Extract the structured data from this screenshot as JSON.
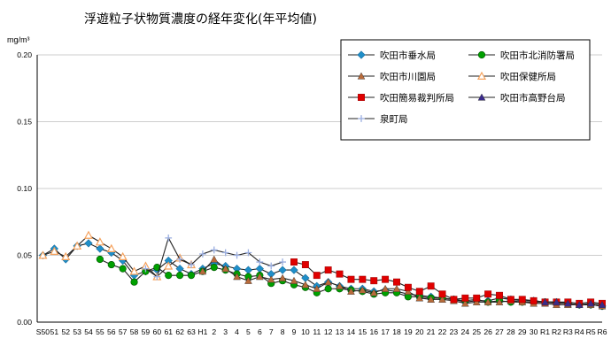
{
  "chart_data": {
    "type": "line",
    "title": "浮遊粒子状物質濃度の経年変化(年平均値)",
    "ylabel": "mg/m³",
    "ylim": [
      0,
      0.2
    ],
    "y_ticks": [
      "0.00",
      "0.05",
      "0.10",
      "0.15",
      "0.20"
    ],
    "categories": [
      "S50",
      "51",
      "52",
      "53",
      "54",
      "55",
      "56",
      "57",
      "58",
      "59",
      "60",
      "61",
      "62",
      "63",
      "H1",
      "2",
      "3",
      "4",
      "5",
      "6",
      "7",
      "8",
      "9",
      "10",
      "11",
      "12",
      "13",
      "14",
      "15",
      "16",
      "17",
      "18",
      "19",
      "20",
      "21",
      "22",
      "23",
      "24",
      "25",
      "26",
      "27",
      "28",
      "29",
      "30",
      "R1",
      "R2",
      "R3",
      "R4",
      "R5",
      "R6"
    ],
    "legend_position": "top-right",
    "grid": true,
    "series": [
      {
        "name": "吹田市垂水局",
        "color": "#1f8fc9",
        "marker": "diamond",
        "values": [
          0.05,
          0.055,
          0.047,
          0.057,
          0.059,
          0.055,
          0.052,
          0.046,
          0.035,
          0.038,
          0.039,
          0.046,
          0.04,
          0.036,
          0.04,
          0.044,
          0.042,
          0.04,
          0.039,
          0.04,
          0.036,
          0.039,
          0.039,
          0.033,
          0.027,
          0.03,
          0.027,
          0.025,
          0.025,
          0.023,
          0.024,
          0.023,
          0.021,
          0.02,
          0.019,
          0.018,
          0.017,
          0.015,
          0.016,
          0.016,
          0.018,
          0.017,
          0.016,
          0.016,
          0.015,
          0.015,
          0.014,
          0.013,
          0.013,
          0.012
        ]
      },
      {
        "name": "吹田市北消防署局",
        "color": "#00a000",
        "marker": "circle",
        "values": [
          null,
          null,
          null,
          null,
          null,
          0.047,
          0.043,
          0.04,
          0.03,
          0.038,
          0.041,
          0.035,
          0.035,
          0.035,
          0.038,
          0.041,
          0.039,
          0.036,
          0.034,
          0.035,
          0.029,
          0.031,
          0.028,
          0.026,
          0.022,
          0.025,
          0.025,
          0.024,
          0.023,
          0.021,
          0.022,
          0.022,
          0.019,
          0.019,
          0.018,
          0.018,
          0.017,
          0.016,
          0.017,
          0.015,
          0.016,
          0.015,
          0.015,
          0.015,
          0.015,
          0.014,
          0.014,
          0.013,
          0.013,
          0.012
        ]
      },
      {
        "name": "吹田市川園局",
        "color": "#b86a3a",
        "marker": "triangle",
        "values": [
          null,
          null,
          null,
          null,
          null,
          null,
          null,
          null,
          null,
          null,
          null,
          null,
          null,
          null,
          0.038,
          0.047,
          0.04,
          0.034,
          0.031,
          0.034,
          0.032,
          0.033,
          0.031,
          0.028,
          0.025,
          0.03,
          0.027,
          0.023,
          0.024,
          0.022,
          0.025,
          0.025,
          0.023,
          0.018,
          0.017,
          0.017,
          0.016,
          0.014,
          0.015,
          0.015,
          0.015,
          0.016,
          0.015,
          0.014,
          0.014,
          0.013,
          0.013,
          0.013,
          0.013,
          0.012
        ]
      },
      {
        "name": "吹田保健所局",
        "color": "#f5a25d",
        "marker": "triangle-open",
        "values": [
          0.05,
          0.053,
          0.049,
          0.057,
          0.065,
          0.06,
          0.055,
          0.049,
          0.038,
          0.042,
          0.034,
          0.042,
          0.048,
          0.043,
          null,
          null,
          null,
          null,
          null,
          null,
          null,
          null,
          null,
          null,
          null,
          null,
          null,
          null,
          null,
          null,
          null,
          null,
          null,
          null,
          null,
          null,
          null,
          null,
          null,
          null,
          null,
          null,
          null,
          null,
          null,
          null,
          null,
          null,
          null,
          null
        ]
      },
      {
        "name": "吹田簡易裁判所局",
        "color": "#e00000",
        "marker": "square",
        "values": [
          null,
          null,
          null,
          null,
          null,
          null,
          null,
          null,
          null,
          null,
          null,
          null,
          null,
          null,
          null,
          null,
          null,
          null,
          null,
          null,
          null,
          null,
          0.045,
          0.043,
          0.035,
          0.039,
          0.036,
          0.032,
          0.032,
          0.031,
          0.032,
          0.03,
          0.026,
          0.023,
          0.027,
          0.021,
          0.017,
          0.018,
          0.018,
          0.021,
          0.02,
          0.017,
          0.017,
          0.016,
          0.015,
          0.015,
          0.015,
          0.014,
          0.015,
          0.014
        ]
      },
      {
        "name": "吹田市高野台局",
        "color": "#3a2a8c",
        "marker": "triangle",
        "values": [
          null,
          null,
          null,
          null,
          null,
          null,
          null,
          null,
          null,
          null,
          null,
          null,
          null,
          null,
          null,
          null,
          null,
          null,
          null,
          null,
          null,
          null,
          null,
          null,
          null,
          null,
          null,
          null,
          null,
          null,
          null,
          null,
          null,
          null,
          null,
          null,
          null,
          null,
          null,
          null,
          null,
          null,
          null,
          null,
          0.015,
          0.015,
          0.014,
          0.013,
          0.014,
          0.013
        ]
      },
      {
        "name": "泉町局",
        "color": "#9aaee0",
        "marker": "plus",
        "values": [
          null,
          null,
          null,
          null,
          null,
          null,
          null,
          null,
          null,
          0.04,
          0.034,
          0.063,
          0.047,
          0.043,
          0.051,
          0.054,
          0.052,
          0.05,
          0.052,
          0.045,
          0.042,
          0.045,
          null,
          null,
          null,
          null,
          null,
          null,
          null,
          null,
          null,
          null,
          null,
          null,
          null,
          null,
          null,
          null,
          null,
          null,
          null,
          null,
          null,
          null,
          null,
          null,
          null,
          null,
          null,
          null
        ]
      }
    ]
  }
}
